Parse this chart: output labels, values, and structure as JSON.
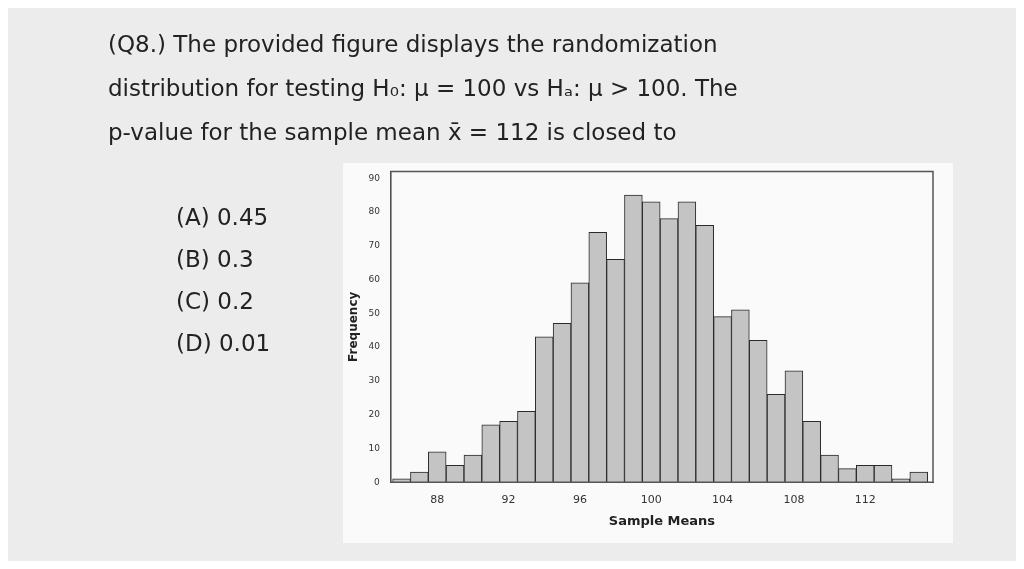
{
  "chart_data": {
    "type": "histogram",
    "title": "(Q8.) The provided figure displays the randomization distribution for testing H₀: μ = 100 vs Hₐ: μ > 100. The p-value for the sample mean x̄ = 112 is closed to",
    "annotations": [
      "(A) 0.45",
      "(B) 0.3",
      "(C) 0.2",
      "(D) 0.01"
    ],
    "xlabel": "Sample Means",
    "ylabel": "Frequency",
    "color": "#c4c4c4",
    "bins": [
      85.5,
      86.5,
      87.5,
      88.5,
      89.5,
      90.5,
      91.5,
      92.5,
      93.5,
      94.5,
      95.5,
      96.5,
      97.5,
      98.5,
      99.5,
      100.5,
      101.5,
      102.5,
      103.5,
      104.5,
      105.5,
      106.5,
      107.5,
      108.5,
      109.5,
      110.5,
      111.5,
      112.5,
      113.5,
      114.5,
      115.5
    ],
    "values": [
      1,
      3,
      9,
      5,
      8,
      17,
      18,
      21,
      43,
      47,
      59,
      74,
      66,
      85,
      83,
      78,
      83,
      76,
      49,
      51,
      42,
      26,
      33,
      18,
      8,
      4,
      5,
      5,
      1,
      3
    ],
    "xlim": [
      85.4,
      115.8
    ],
    "xticks": [
      88,
      92,
      96,
      100,
      104,
      108,
      112
    ],
    "ylim": [
      0,
      92
    ],
    "yticks": [
      0,
      10,
      20,
      30,
      40,
      50,
      60,
      70,
      80,
      90
    ],
    "grid": false,
    "legend": false
  }
}
